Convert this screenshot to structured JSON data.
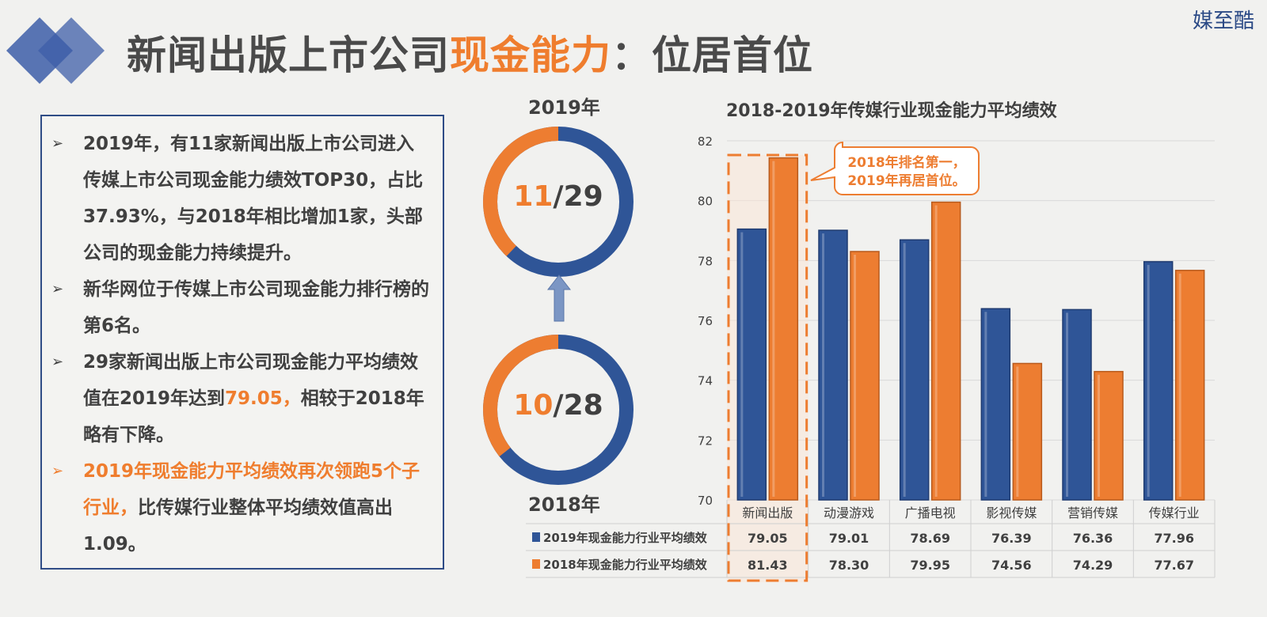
{
  "brand": "媒至酷",
  "title": {
    "part1": "新闻出版上市公司",
    "highlight": "现金能力",
    "part2": "：位居首位"
  },
  "bullets": [
    {
      "text": "2019年，有11家新闻出版上市公司进入传媒上市公司现金能力绩效TOP30，占比37.93%，与2018年相比增加1家，头部公司的现金能力持续提升。"
    },
    {
      "text": "新华网位于传媒上市公司现金能力排行榜的第6名。"
    },
    {
      "pre": "29家新闻出版上市公司现金能力平均绩效值在2019年达到",
      "value": "79.05，",
      "post": "相较于2018年略有下降。"
    },
    {
      "highlight": "2019年现金能力平均绩效再次领跑5个子行业，",
      "post": "比传媒行业整体平均绩效值高出1.09。"
    }
  ],
  "donuts": {
    "top": {
      "label": "2019年",
      "numerator": "11",
      "denominator": "/29",
      "fraction": 0.3793
    },
    "bottom": {
      "label": "2018年",
      "numerator": "10",
      "denominator": "/28",
      "fraction": 0.3571
    }
  },
  "colors": {
    "blue": "#2f5597",
    "orange": "#ed7d31",
    "accent_text": "#ef7d2e"
  },
  "chart_data": {
    "type": "bar",
    "title": "2018-2019年传媒行业现金能力平均绩效",
    "categories": [
      "新闻出版",
      "动漫游戏",
      "广播电视",
      "影视传媒",
      "营销传媒",
      "传媒行业"
    ],
    "series": [
      {
        "name": "2019年现金能力行业平均绩效",
        "color": "#2f5597",
        "values": [
          79.05,
          79.01,
          78.69,
          76.39,
          76.36,
          77.96
        ]
      },
      {
        "name": "2018年现金能力行业平均绩效",
        "color": "#ed7d31",
        "values": [
          81.43,
          78.3,
          79.95,
          74.56,
          74.29,
          77.67
        ]
      }
    ],
    "table_values": [
      [
        "79.05",
        "79.01",
        "78.69",
        "76.39",
        "76.36",
        "77.96"
      ],
      [
        "81.43",
        "78.30",
        "79.95",
        "74.56",
        "74.29",
        "77.67"
      ]
    ],
    "ylim": [
      70,
      82
    ],
    "yticks": [
      70,
      72,
      74,
      76,
      78,
      80,
      82
    ],
    "grid": true,
    "legend": "data table below chart",
    "annotation": "2018年排名第一，\n2019年再居首位。"
  }
}
